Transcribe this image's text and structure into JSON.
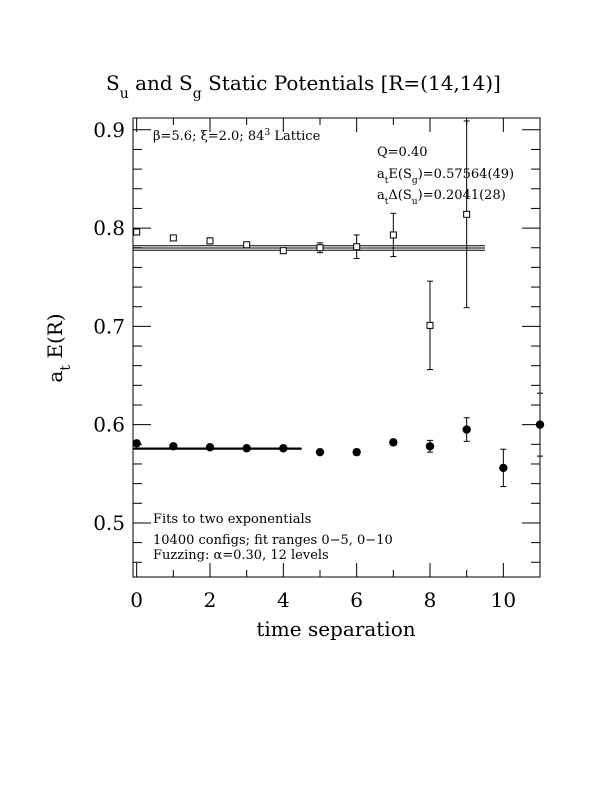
{
  "chart_data": {
    "type": "scatter",
    "title": {
      "parts": [
        {
          "t": "S"
        },
        {
          "t": "u",
          "sub": true
        },
        {
          "t": " and S"
        },
        {
          "t": "g",
          "sub": true
        },
        {
          "t": " Static Potentials [R=(14,14)]"
        }
      ]
    },
    "xlabel": "time separation",
    "ylabel": {
      "parts": [
        {
          "t": "a"
        },
        {
          "t": "t",
          "sub": true
        },
        {
          "t": " E(R)"
        }
      ]
    },
    "xlim": [
      -0.1,
      11.0
    ],
    "ylim": [
      0.445,
      0.912
    ],
    "x_ticks": [
      0,
      2,
      4,
      6,
      8,
      10
    ],
    "x_minor": [
      1,
      3,
      5,
      7,
      9
    ],
    "y_ticks": [
      0.5,
      0.6,
      0.7,
      0.8,
      0.9
    ],
    "y_tick_labels": [
      "0.5",
      "0.6",
      "0.7",
      "0.8",
      "0.9"
    ],
    "series": [
      {
        "marker": "open-square",
        "points": [
          {
            "x": 0,
            "y": 0.796,
            "err": 0.002
          },
          {
            "x": 1,
            "y": 0.79,
            "err": 0.002
          },
          {
            "x": 2,
            "y": 0.787,
            "err": 0.003
          },
          {
            "x": 3,
            "y": 0.783,
            "err": 0.002
          },
          {
            "x": 4,
            "y": 0.777,
            "err": 0.002
          },
          {
            "x": 5,
            "y": 0.78,
            "err": 0.005
          },
          {
            "x": 6,
            "y": 0.781,
            "err": 0.012
          },
          {
            "x": 7,
            "y": 0.793,
            "err": 0.022
          },
          {
            "x": 8,
            "y": 0.701,
            "err": 0.045
          },
          {
            "x": 9,
            "y": 0.814,
            "err": 0.095
          }
        ],
        "fit": {
          "y_center": 0.7797,
          "y_band": 0.0023,
          "x_range": [
            0,
            9.5
          ]
        }
      },
      {
        "marker": "filled-circle",
        "points": [
          {
            "x": 0,
            "y": 0.581,
            "err": 0.002
          },
          {
            "x": 1,
            "y": 0.578,
            "err": 0.002
          },
          {
            "x": 2,
            "y": 0.577,
            "err": 0.002
          },
          {
            "x": 3,
            "y": 0.576,
            "err": 0.002
          },
          {
            "x": 4,
            "y": 0.576,
            "err": 0.002
          },
          {
            "x": 5,
            "y": 0.572,
            "err": 0.002
          },
          {
            "x": 6,
            "y": 0.572,
            "err": 0.003
          },
          {
            "x": 7,
            "y": 0.582,
            "err": 0.003
          },
          {
            "x": 8,
            "y": 0.578,
            "err": 0.006
          },
          {
            "x": 9,
            "y": 0.595,
            "err": 0.012
          },
          {
            "x": 10,
            "y": 0.556,
            "err": 0.019
          },
          {
            "x": 11,
            "y": 0.6,
            "err": 0.032
          }
        ],
        "fit": {
          "y_center": 0.5756,
          "y_band": 0.0006,
          "x_range": [
            0,
            4.5
          ]
        }
      }
    ],
    "annotations": {
      "lattice": {
        "parts": [
          {
            "t": "β=5.6; ξ=2.0; 84"
          },
          {
            "t": "3",
            "sup": true
          },
          {
            "t": " Lattice"
          }
        ]
      },
      "q": {
        "parts": [
          {
            "t": "Q=0.40"
          }
        ]
      },
      "energy": {
        "parts": [
          {
            "t": "a"
          },
          {
            "t": "t",
            "sub": true
          },
          {
            "t": "E(S"
          },
          {
            "t": "g",
            "sub": true
          },
          {
            "t": ")=0.57564(49)"
          }
        ]
      },
      "gap": {
        "parts": [
          {
            "t": "a"
          },
          {
            "t": "t",
            "sub": true
          },
          {
            "t": "Δ(S"
          },
          {
            "t": "u",
            "sub": true
          },
          {
            "t": ")=0.2041(28)"
          }
        ]
      },
      "fits": "Fits to two exponentials",
      "configs": "10400 configs; fit ranges 0−5, 0−10",
      "fuzzing": "Fuzzing: α=0.30, 12 levels"
    }
  }
}
